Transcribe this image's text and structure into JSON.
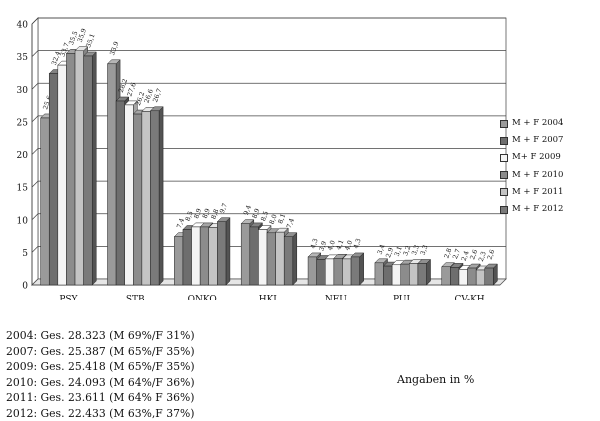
{
  "chart_data": {
    "type": "bar",
    "categories": [
      "PSY",
      "STB",
      "ONKO",
      "HKL",
      "NEU",
      "PUL",
      "CV-KH"
    ],
    "ylim": [
      0,
      40
    ],
    "yticks": [
      0,
      5,
      10,
      15,
      20,
      25,
      30,
      35,
      40
    ],
    "grid": true,
    "legend_position": "right",
    "series": [
      {
        "name": "M + F 2004",
        "color": "#9a9a9a",
        "values": [
          25.6,
          33.9,
          7.4,
          9.4,
          4.3,
          3.4,
          2.8
        ]
      },
      {
        "name": "M + F 2007",
        "color": "#6e6e6e",
        "values": [
          32.4,
          28.2,
          8.5,
          8.9,
          3.9,
          2.9,
          2.7
        ]
      },
      {
        "name": "M+ F 2009",
        "color": "#f4f4f4",
        "values": [
          33.7,
          27.6,
          8.9,
          8.5,
          4.0,
          3.1,
          2.4
        ]
      },
      {
        "name": "M + F 2010",
        "color": "#8c8c8c",
        "values": [
          35.5,
          26.2,
          8.9,
          8.0,
          4.1,
          3.2,
          2.6
        ]
      },
      {
        "name": "M + F 2011",
        "color": "#c4c4c4",
        "values": [
          35.9,
          26.6,
          8.8,
          8.1,
          4.0,
          3.3,
          2.3
        ]
      },
      {
        "name": "M + F 2012",
        "color": "#7a7a7a",
        "values": [
          35.1,
          26.7,
          9.7,
          7.4,
          4.3,
          3.3,
          2.6
        ]
      }
    ],
    "value_labels": [
      [
        "25,6",
        "33,9",
        "7,4",
        "9,4",
        "4,3",
        "3,4",
        "2,8"
      ],
      [
        "32,4",
        "28,2",
        "8,5",
        "8,9",
        "3,9",
        "2,9",
        "2,7"
      ],
      [
        "33,7",
        "27,6",
        "8,9",
        "8,5",
        "4,0",
        "3,1",
        "2,4"
      ],
      [
        "35,5",
        "26,2",
        "8,9",
        "8,0",
        "4,1",
        "3,2",
        "2,6"
      ],
      [
        "35,9",
        "26,6",
        "8,8",
        "8,1",
        "4,0",
        "3,3",
        "2,3"
      ],
      [
        "35,1",
        "26,7",
        "9,7",
        "7,4",
        "4,3",
        "3,3",
        "2,6"
      ]
    ],
    "notes": [
      "2004: Ges. 28.323 (M 69%/F 31%)",
      "2007: Ges. 25.387 (M 65%/F 35%)",
      "2009: Ges. 25.418 (M 65%/F 35%)",
      "2010: Ges. 24.093 (M 64%/F 36%)",
      "2011: Ges. 23.611 (M 64% F 36%)",
      "2012: Ges. 22.433 (M 63%,F 37%)"
    ],
    "unit_note": "Angaben in %"
  }
}
